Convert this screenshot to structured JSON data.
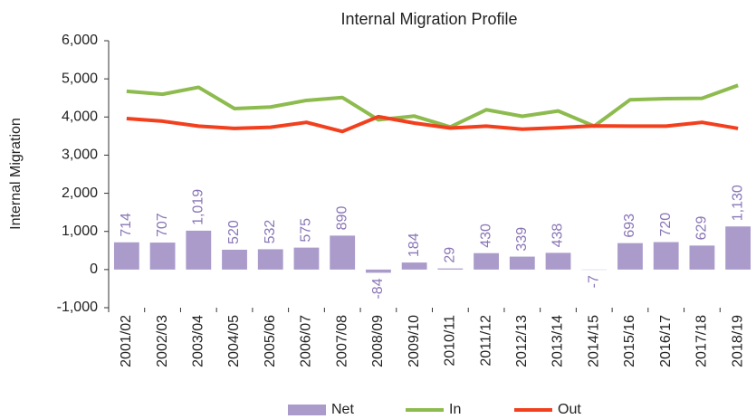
{
  "chart_data": {
    "type": "combo",
    "title": "Internal Migration Profile",
    "y_label": "Internal Migration",
    "categories": [
      "2001/02",
      "2002/03",
      "2003/04",
      "2004/05",
      "2005/06",
      "2006/07",
      "2007/08",
      "2008/09",
      "2009/10",
      "2010/11",
      "2011/12",
      "2012/13",
      "2013/14",
      "2014/15",
      "2015/16",
      "2016/17",
      "2017/18",
      "2018/19"
    ],
    "series": [
      {
        "name": "Net",
        "type": "bar",
        "color": "#aa9bcb",
        "label_color": "#8a76b6",
        "values": [
          714,
          707,
          1019,
          520,
          532,
          575,
          890,
          -84,
          184,
          29,
          430,
          339,
          438,
          -7,
          693,
          720,
          629,
          1130
        ],
        "value_labels": [
          "714",
          "707",
          "1,019",
          "520",
          "532",
          "575",
          "890",
          "-84",
          "184",
          "29",
          "430",
          "339",
          "438",
          "-7",
          "693",
          "720",
          "629",
          "1,130"
        ]
      },
      {
        "name": "In",
        "type": "line",
        "color": "#8dbb4e",
        "values": [
          4674,
          4597,
          4779,
          4220,
          4262,
          4435,
          4510,
          3926,
          4024,
          3739,
          4190,
          4019,
          4158,
          3760,
          4453,
          4480,
          4489,
          4830
        ]
      },
      {
        "name": "Out",
        "type": "line",
        "color": "#f2401f",
        "values": [
          3960,
          3890,
          3760,
          3700,
          3730,
          3860,
          3620,
          4010,
          3840,
          3710,
          3760,
          3680,
          3720,
          3767,
          3760,
          3760,
          3860,
          3700
        ]
      }
    ],
    "ylim": [
      -1000,
      6000
    ],
    "yticks": [
      {
        "value": -1000,
        "label": "-1,000"
      },
      0,
      {
        "value": 1000,
        "label": "1,000"
      },
      {
        "value": 2000,
        "label": "2,000"
      },
      {
        "value": 3000,
        "label": "3,000"
      },
      {
        "value": 4000,
        "label": "4,000"
      },
      {
        "value": 5000,
        "label": "5,000"
      },
      {
        "value": 6000,
        "label": "6,000"
      }
    ],
    "legend": "bottom"
  }
}
